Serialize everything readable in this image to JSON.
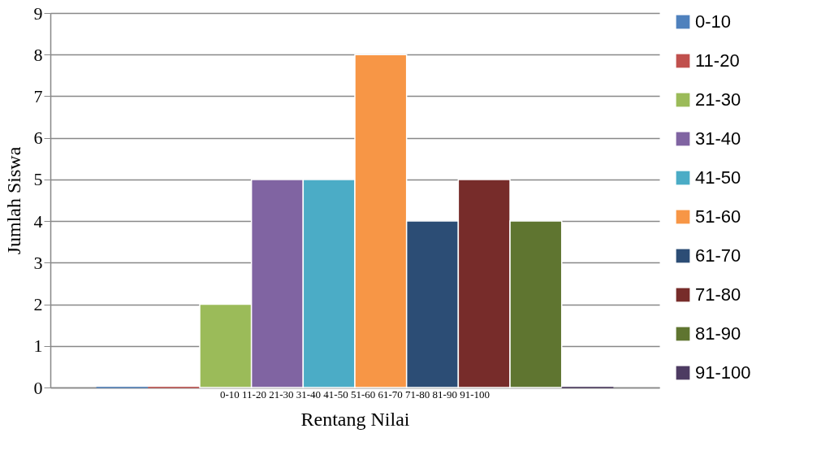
{
  "chart_data": {
    "type": "bar",
    "xlabel": "Rentang Nilai",
    "ylabel": "Jumlah Siswa",
    "categories": [
      "0-10 11-20 21-30 31-40 41-50 51-60 61-70 71-80 81-90 91-100"
    ],
    "series": [
      {
        "name": "0-10",
        "color": "#4f81bd",
        "values": [
          0
        ]
      },
      {
        "name": "11-20",
        "color": "#c0504d",
        "values": [
          0
        ]
      },
      {
        "name": "21-30",
        "color": "#9bbb59",
        "values": [
          2
        ]
      },
      {
        "name": "31-40",
        "color": "#8064a2",
        "values": [
          5
        ]
      },
      {
        "name": "41-50",
        "color": "#4bacc6",
        "values": [
          5
        ]
      },
      {
        "name": "51-60",
        "color": "#f79646",
        "values": [
          8
        ]
      },
      {
        "name": "61-70",
        "color": "#2c4d75",
        "values": [
          4
        ]
      },
      {
        "name": "71-80",
        "color": "#772c2a",
        "values": [
          5
        ]
      },
      {
        "name": "81-90",
        "color": "#5f7530",
        "values": [
          4
        ]
      },
      {
        "name": "91-100",
        "color": "#4d3b62",
        "values": [
          0
        ]
      }
    ],
    "ylim": [
      0,
      9
    ],
    "yticks": [
      0,
      1,
      2,
      3,
      4,
      5,
      6,
      7,
      8,
      9
    ],
    "grid": "y",
    "legend": "right"
  }
}
